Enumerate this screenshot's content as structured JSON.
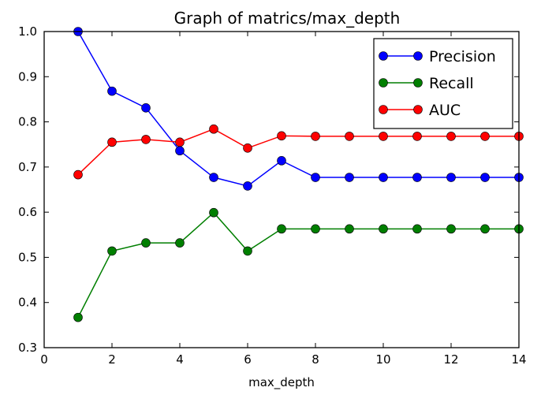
{
  "chart_data": {
    "type": "line",
    "title": "Graph of matrics/max_depth",
    "xlabel": "max_depth",
    "ylabel": "",
    "xlim": [
      0,
      14
    ],
    "ylim": [
      0.3,
      1.0
    ],
    "xticks": [
      "0",
      "2",
      "4",
      "6",
      "8",
      "10",
      "12",
      "14"
    ],
    "yticks": [
      "0.3",
      "0.4",
      "0.5",
      "0.6",
      "0.7",
      "0.8",
      "0.9",
      "1.0"
    ],
    "grid": false,
    "legend_position": "top-right",
    "x": [
      1,
      2,
      3,
      4,
      5,
      6,
      7,
      8,
      9,
      10,
      11,
      12,
      13,
      14
    ],
    "series": [
      {
        "name": "Precision",
        "color": "#0000ff",
        "values": [
          1.0,
          0.868,
          0.831,
          0.736,
          0.677,
          0.658,
          0.714,
          0.677,
          0.677,
          0.677,
          0.677,
          0.677,
          0.677,
          0.677
        ]
      },
      {
        "name": "Recall",
        "color": "#007f00",
        "values": [
          0.367,
          0.514,
          0.532,
          0.532,
          0.599,
          0.514,
          0.563,
          0.563,
          0.563,
          0.563,
          0.563,
          0.563,
          0.563,
          0.563
        ]
      },
      {
        "name": "AUC",
        "color": "#ff0000",
        "values": [
          0.683,
          0.755,
          0.761,
          0.755,
          0.784,
          0.742,
          0.769,
          0.768,
          0.768,
          0.768,
          0.768,
          0.768,
          0.768,
          0.768
        ]
      }
    ]
  }
}
